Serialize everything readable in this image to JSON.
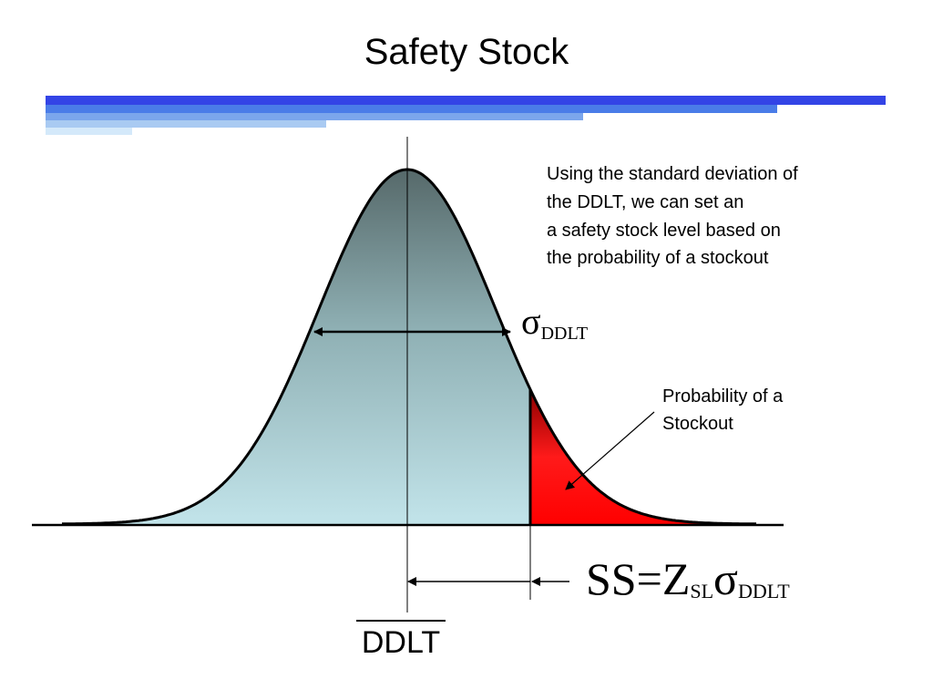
{
  "title": "Safety Stock",
  "description": [
    "Using the standard deviation of",
    "the DDLT, we can set an",
    "a safety stock level based on",
    "the probability of a stockout"
  ],
  "sigma_label": {
    "symbol": "σ",
    "subscript": "DDLT"
  },
  "stockout_label": [
    "Probability of a",
    "Stockout"
  ],
  "formula": {
    "lhs": "SS=Z",
    "z_subscript": "SL",
    "symbol": "σ",
    "sigma_subscript": "DDLT"
  },
  "mean_label": "DDLT"
}
